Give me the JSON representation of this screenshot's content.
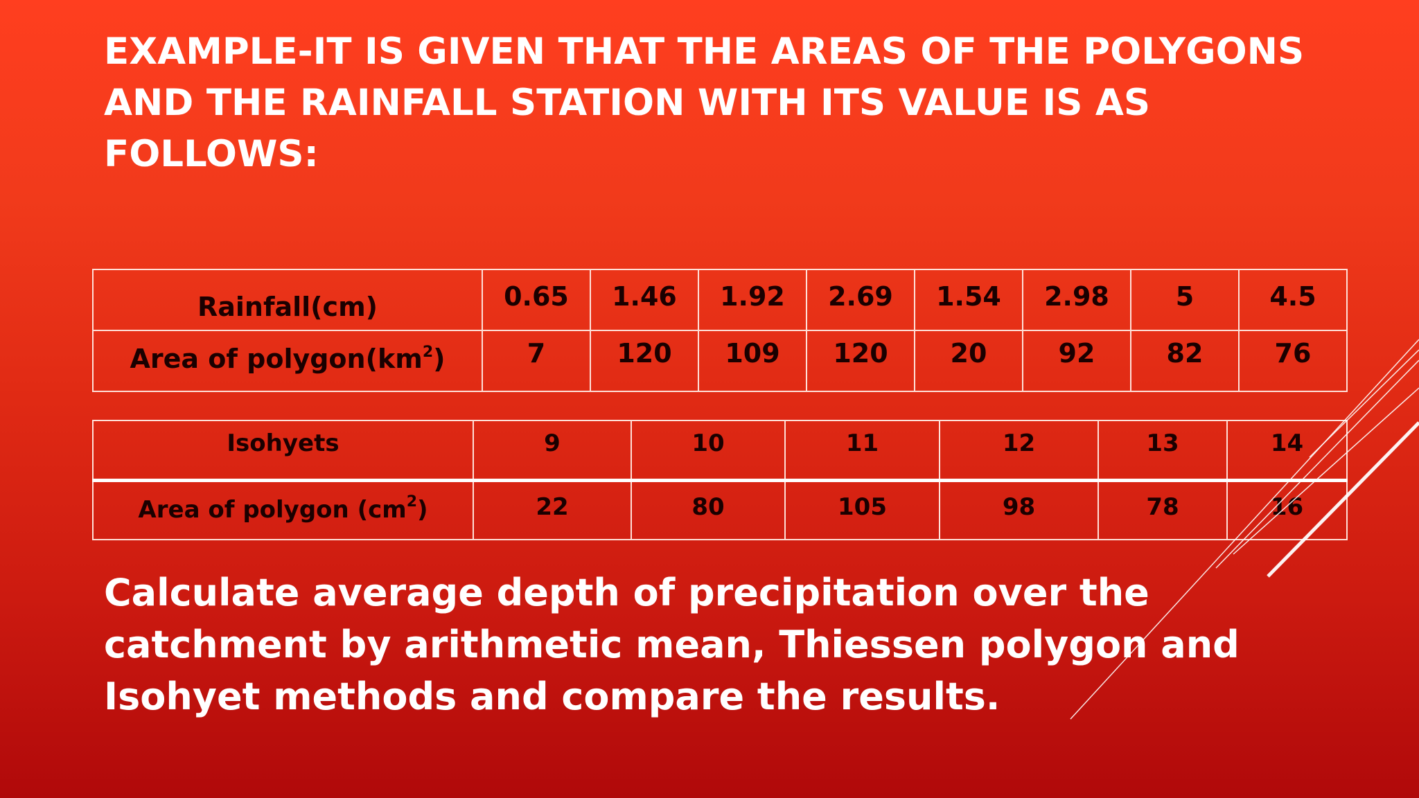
{
  "title": "EXAMPLE-IT IS GIVEN THAT THE AREAS OF THE POLYGONS AND THE RAINFALL STATION WITH ITS VALUE IS AS FOLLOWS:",
  "rainfall_table": {
    "row1_header": "Rainfall(cm)",
    "row1_values": [
      "0.65",
      "1.46",
      "1.92",
      "2.69",
      "1.54",
      "2.98",
      "5",
      "4.5"
    ],
    "row2_header_text": "Area of polygon(km",
    "row2_header_sup": "2",
    "row2_header_close": ")",
    "row2_values": [
      "7",
      "120",
      "109",
      "120",
      "20",
      "92",
      "82",
      "76"
    ]
  },
  "isohyet_table": {
    "row1_header": "Isohyets",
    "row1_values": [
      "9",
      "10",
      "11",
      "12",
      "13",
      "14"
    ],
    "row2_header_text": "Area of polygon (cm",
    "row2_header_sup": "2",
    "row2_header_close": ")",
    "row2_values": [
      "22",
      "80",
      "105",
      "98",
      "78",
      "16"
    ]
  },
  "question": "Calculate average depth of precipitation over the catchment by arithmetic mean, Thiessen polygon and Isohyet methods and compare the results.",
  "colors": {
    "background_top": "#ff3e1f",
    "background_bottom": "#b0090a",
    "text": "#ffffff",
    "table_text": "#1a0000",
    "table_border": "#ffe0d8"
  }
}
